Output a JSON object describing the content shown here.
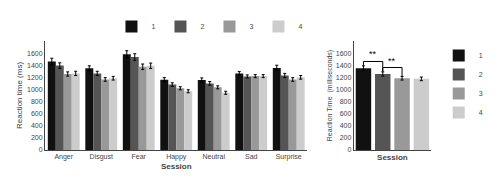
{
  "chart_data": [
    {
      "type": "bar",
      "categories": [
        "Anger",
        "Disgust",
        "Fear",
        "Happy",
        "Neutral",
        "Sad",
        "Surprise"
      ],
      "series": [
        {
          "name": "1",
          "color": "#111111",
          "values": [
            1460,
            1350,
            1580,
            1160,
            1155,
            1265,
            1355
          ],
          "errors": [
            55,
            40,
            60,
            35,
            35,
            30,
            45
          ]
        },
        {
          "name": "2",
          "color": "#555555",
          "values": [
            1395,
            1265,
            1535,
            1080,
            1100,
            1215,
            1230
          ],
          "errors": [
            45,
            35,
            55,
            30,
            30,
            25,
            35
          ]
        },
        {
          "name": "3",
          "color": "#999999",
          "values": [
            1255,
            1165,
            1375,
            1020,
            1035,
            1220,
            1165
          ],
          "errors": [
            35,
            30,
            45,
            25,
            25,
            25,
            30
          ]
        },
        {
          "name": "4",
          "color": "#cccccc",
          "values": [
            1265,
            1185,
            1390,
            970,
            945,
            1220,
            1200
          ],
          "errors": [
            35,
            30,
            45,
            25,
            25,
            25,
            30
          ]
        }
      ],
      "xlabel": "Session",
      "ylabel": "Reaction time (ms)",
      "ylim": [
        0,
        1800
      ],
      "yticks": [
        0,
        200,
        400,
        600,
        800,
        1000,
        1200,
        1400,
        1600
      ],
      "grid": false,
      "legend": "upper right"
    },
    {
      "type": "bar",
      "categories": [
        "1",
        "2",
        "3",
        "4"
      ],
      "values": [
        1350,
        1255,
        1185,
        1175
      ],
      "errors": [
        40,
        35,
        30,
        30
      ],
      "colors": [
        "#111111",
        "#555555",
        "#999999",
        "#cccccc"
      ],
      "xlabel": "Session",
      "ylabel": "Reaction Time  (milliseconds)",
      "ylim": [
        0,
        1800
      ],
      "yticks": [
        0,
        200,
        400,
        600,
        800,
        1000,
        1200,
        1400,
        1600
      ],
      "grid": false,
      "legend": "upper right",
      "tick_labels": "y",
      "annotations": [
        {
          "text": "**",
          "from": "1",
          "to": "2"
        },
        {
          "text": "**",
          "from": "2",
          "to": "3"
        }
      ]
    }
  ]
}
